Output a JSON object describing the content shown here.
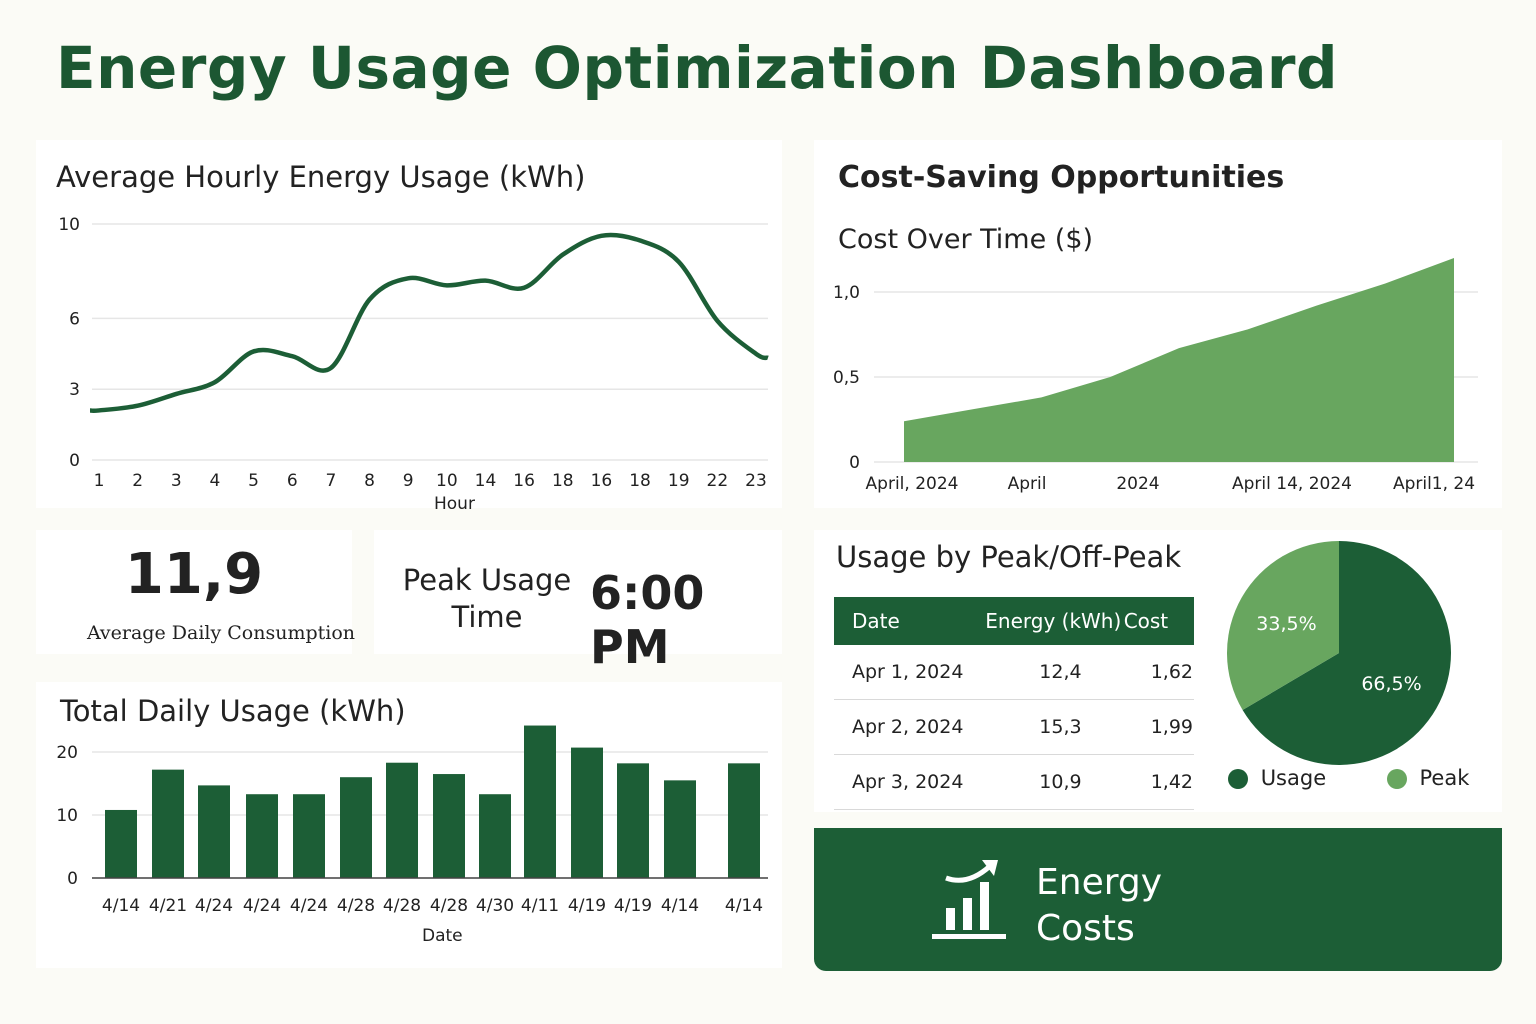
{
  "page_title": "Energy Usage Optimization Dashboard",
  "colors": {
    "dark_green": "#1c5e36",
    "light_green": "#68a65f",
    "title_green": "#1c5732"
  },
  "hourly": {
    "title": "Average Hourly Energy Usage (kWh)",
    "xlabel": "Hour"
  },
  "cost_section": {
    "title": "Cost-Saving Opportunities",
    "subtitle": "Cost Over Time ($)"
  },
  "kpi": {
    "avg_value": "11,9",
    "avg_label": "Average Daily Consumption",
    "peak_label_line1": "Peak Usage",
    "peak_label_line2": "Time",
    "peak_value": "6:00 PM"
  },
  "daily": {
    "title": "Total Daily Usage (kWh)",
    "xlabel": "Date"
  },
  "peak_section": {
    "title": "Usage by Peak/Off-Peak",
    "table": {
      "headers": [
        "Date",
        "Energy (kWh)",
        "Cost"
      ],
      "rows": [
        [
          "Apr 1, 2024",
          "12,4",
          "1,62"
        ],
        [
          "Apr 2, 2024",
          "15,3",
          "1,99"
        ],
        [
          "Apr 3, 2024",
          "10,9",
          "1,42"
        ]
      ]
    }
  },
  "banner": {
    "line1": "Energy",
    "line2": "Costs",
    "icon": "chart-growth-icon"
  },
  "chart_data": [
    {
      "type": "line",
      "title": "Average Hourly Energy Usage (kWh)",
      "xlabel": "Hour",
      "ylabel": "",
      "categories": [
        "1",
        "2",
        "3",
        "4",
        "5",
        "6",
        "7",
        "8",
        "9",
        "10",
        "14",
        "16",
        "18",
        "16",
        "18",
        "19",
        "22",
        "23"
      ],
      "values": [
        2.1,
        2.3,
        2.8,
        3.3,
        4.6,
        4.4,
        3.9,
        6.8,
        7.7,
        7.4,
        7.6,
        7.3,
        8.7,
        9.5,
        9.3,
        8.4,
        5.9,
        4.5
      ],
      "yticks": [
        "10",
        "6",
        "3",
        "0"
      ],
      "ylim": [
        0,
        10
      ],
      "grid": true
    },
    {
      "type": "area",
      "title": "Cost Over Time ($)",
      "x_tick_labels": [
        "April, 2024",
        "April",
        "2024",
        "April 14, 2024",
        "April1, 24"
      ],
      "values": [
        0.24,
        0.31,
        0.38,
        0.5,
        0.67,
        0.78,
        0.92,
        1.05,
        1.2
      ],
      "yticks": [
        "1,0",
        "0,5",
        "0"
      ],
      "ylim": [
        0,
        1.0
      ],
      "grid": true
    },
    {
      "type": "bar",
      "title": "Total Daily Usage (kWh)",
      "xlabel": "Date",
      "categories": [
        "4/14",
        "4/21",
        "4/24",
        "4/24",
        "4/24",
        "4/28",
        "4/28",
        "4/28",
        "4/30",
        "4/11",
        "4/19",
        "4/19",
        "4/14",
        "4/14"
      ],
      "values": [
        10.8,
        17.2,
        14.7,
        13.3,
        13.3,
        16.0,
        18.3,
        16.5,
        13.3,
        24.2,
        20.7,
        18.2,
        15.5,
        18.2
      ],
      "yticks": [
        "20",
        "10",
        "0"
      ],
      "ylim": [
        0,
        20
      ],
      "grid": true
    },
    {
      "type": "pie",
      "slices": [
        {
          "label": "Usage",
          "value": 66.5,
          "text": "66,5%",
          "color": "#1c5e36"
        },
        {
          "label": "Peak",
          "value": 33.5,
          "text": "33,5%",
          "color": "#68a65f"
        }
      ],
      "legend": "bottom"
    }
  ]
}
